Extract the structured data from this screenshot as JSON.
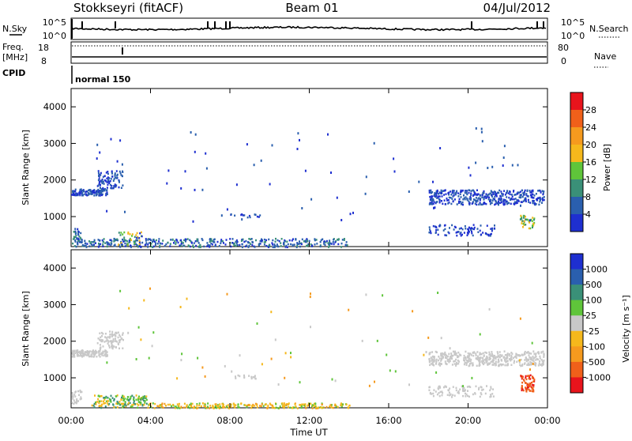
{
  "header": {
    "station": "Stokkseyri (fitACF)",
    "beam": "Beam 01",
    "date": "04/Jul/2012"
  },
  "summary": {
    "nsky_label": "N.Sky",
    "nsearch_label": "N.Search",
    "nsky_ticks": [
      "10^5",
      "10^0"
    ],
    "nsearch_ticks": [
      "10^5",
      "10^0"
    ],
    "freq_label": "Freq.",
    "freq_unit": "[MHz]",
    "freq_ticks": [
      "18",
      "8"
    ],
    "nave_label": "Nave",
    "nave_ticks": [
      "80",
      "0"
    ],
    "cpid_label": "CPID",
    "cpid_value": "normal 150"
  },
  "time_axis": {
    "label": "Time UT",
    "ticks": [
      "00:00",
      "04:00",
      "08:00",
      "12:00",
      "16:00",
      "20:00",
      "00:00"
    ]
  },
  "panels": {
    "power": {
      "ylabel": "Slant Range [km]",
      "yticks": [
        "4000",
        "3000",
        "2000",
        "1000"
      ],
      "cbar_label": "Power [dB]",
      "cbar_ticks": [
        "28",
        "24",
        "20",
        "16",
        "12",
        "8",
        "4"
      ],
      "cbar_colors": [
        "#e8141c",
        "#f0601a",
        "#f59a1e",
        "#f5b81c",
        "#5fc53a",
        "#3a9078",
        "#2a5fae",
        "#1e2fd0"
      ]
    },
    "velocity": {
      "ylabel": "Slant Range [km]",
      "yticks": [
        "4000",
        "3000",
        "2000",
        "1000"
      ],
      "cbar_label": "Velocity [m s⁻¹]",
      "cbar_ticks": [
        "1000",
        "500",
        "100",
        "25",
        "-25",
        "-100",
        "-500",
        "-1000"
      ],
      "cbar_colors": [
        "#1e2fd0",
        "#2a5fae",
        "#3a9078",
        "#5fc53a",
        "#c8c8c8",
        "#f5b81c",
        "#f59a1e",
        "#f0601a",
        "#e8141c"
      ]
    }
  },
  "chart_data": [
    {
      "type": "heatmap",
      "title": "Power",
      "xlabel": "Time UT",
      "ylabel": "Slant Range [km]",
      "xlim": [
        "00:00",
        "24:00"
      ],
      "ylim": [
        180,
        4500
      ],
      "colorbar": {
        "label": "Power [dB]",
        "range": [
          0,
          30
        ]
      },
      "regions": [
        {
          "t0": 0.0,
          "t1": 2.2,
          "r0": 1600,
          "r1": 1800,
          "level": "low (4-8 dB)"
        },
        {
          "t0": 1.8,
          "t1": 2.8,
          "r0": 1900,
          "r1": 2300,
          "level": "low (4-8 dB)"
        },
        {
          "t0": 0.0,
          "t1": 14.0,
          "r0": 180,
          "r1": 450,
          "level": "low-mid (4-16 dB)"
        },
        {
          "t0": 19.0,
          "t1": 23.8,
          "r0": 1300,
          "r1": 1800,
          "level": "low (4-8 dB)"
        },
        {
          "t0": 18.0,
          "t1": 21.0,
          "r0": 500,
          "r1": 800,
          "level": "low (4-8 dB)"
        },
        {
          "t0": 22.5,
          "t1": 23.2,
          "r0": 700,
          "r1": 1000,
          "level": "mid (8-16 dB)"
        }
      ]
    },
    {
      "type": "heatmap",
      "title": "Velocity",
      "xlabel": "Time UT",
      "ylabel": "Slant Range [km]",
      "xlim": [
        "00:00",
        "24:00"
      ],
      "ylim": [
        180,
        4500
      ],
      "colorbar": {
        "label": "Velocity [m s⁻¹]",
        "range": [
          -1000,
          1000
        ]
      },
      "regions": [
        {
          "t0": 0.0,
          "t1": 2.8,
          "r0": 1600,
          "r1": 2300,
          "level": "-25 to 25"
        },
        {
          "t0": 0.0,
          "t1": 14.0,
          "r0": 180,
          "r1": 450,
          "level": "-100 to 100"
        },
        {
          "t0": 18.0,
          "t1": 23.8,
          "r0": 1300,
          "r1": 1800,
          "level": "-25 to 25"
        },
        {
          "t0": 22.5,
          "t1": 23.2,
          "r0": 700,
          "r1": 1100,
          "level": "-500 to -1000"
        }
      ]
    }
  ]
}
